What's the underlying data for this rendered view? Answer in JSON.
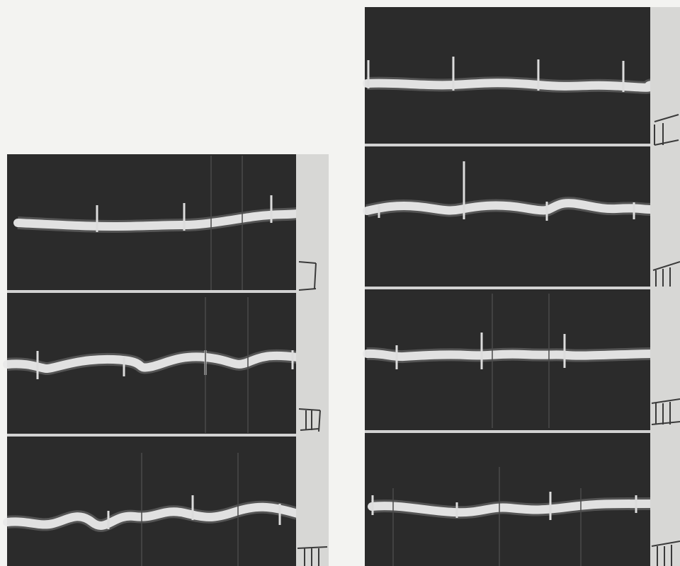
{
  "figure": {
    "description_hint": "",
    "lead_labels": [
      "I",
      "II",
      "III",
      "II",
      "III",
      "IV"
    ]
  }
}
